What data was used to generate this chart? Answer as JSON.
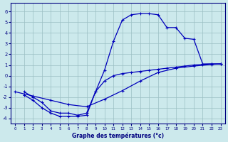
{
  "xlabel": "Graphe des températures (°c)",
  "x_ticks": [
    0,
    1,
    2,
    3,
    4,
    5,
    6,
    7,
    8,
    9,
    10,
    11,
    12,
    13,
    14,
    15,
    16,
    17,
    18,
    19,
    20,
    21,
    22,
    23
  ],
  "y_ticks": [
    -4,
    -3,
    -2,
    -1,
    0,
    1,
    2,
    3,
    4,
    5,
    6
  ],
  "xlim": [
    -0.5,
    23.5
  ],
  "ylim": [
    -4.5,
    6.8
  ],
  "background_color": "#cce9ec",
  "grid_color": "#9bbfc3",
  "line_color": "#0000bb",
  "curve_A_x": [
    1,
    2,
    3,
    4,
    5,
    6,
    7,
    8,
    9,
    10,
    11,
    12,
    13,
    14,
    15,
    16,
    17,
    18,
    19,
    20,
    21,
    22,
    23
  ],
  "curve_A_y": [
    -1.5,
    -2.0,
    -2.5,
    -3.3,
    -3.5,
    -3.5,
    -3.7,
    -3.5,
    -1.5,
    0.5,
    3.2,
    5.2,
    5.7,
    5.8,
    5.8,
    5.7,
    4.5,
    4.5,
    3.5,
    3.4,
    1.1,
    1.1,
    1.1
  ],
  "curve_B_x": [
    0,
    2,
    4,
    6,
    8,
    10,
    12,
    14,
    16,
    18,
    20,
    22,
    23
  ],
  "curve_B_y": [
    -1.5,
    -1.9,
    -2.3,
    -2.7,
    -2.9,
    -2.2,
    -1.4,
    -0.5,
    0.3,
    0.7,
    0.9,
    1.05,
    1.1
  ],
  "curve_C_x": [
    1,
    2,
    3,
    4,
    5,
    6,
    7,
    8,
    9,
    10,
    11,
    12,
    13,
    14,
    15,
    16,
    17,
    18,
    19,
    20,
    21,
    22,
    23
  ],
  "curve_C_y": [
    -1.8,
    -2.3,
    -3.0,
    -3.5,
    -3.8,
    -3.8,
    -3.8,
    -3.7,
    -1.5,
    -0.5,
    0.0,
    0.2,
    0.3,
    0.4,
    0.5,
    0.6,
    0.7,
    0.8,
    0.9,
    1.0,
    1.05,
    1.1,
    1.1
  ]
}
